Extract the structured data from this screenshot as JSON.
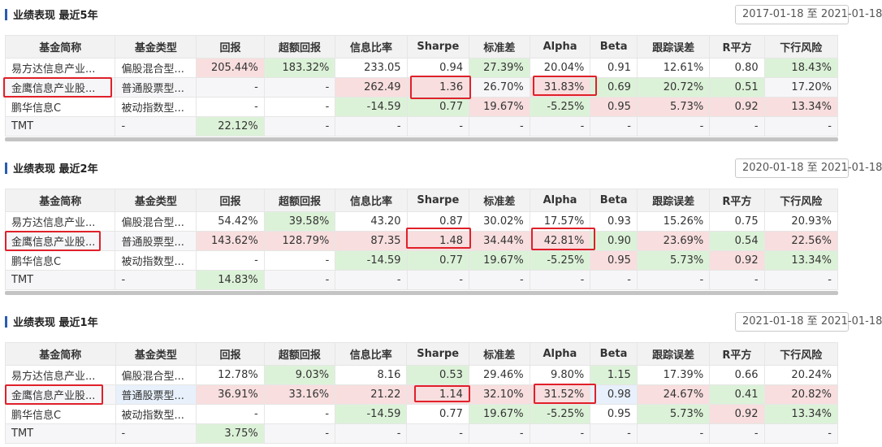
{
  "columns": [
    "基金简称",
    "基金类型",
    "回报",
    "超额回报",
    "信息比率",
    "Sharpe",
    "标准差",
    "Alpha",
    "Beta",
    "跟踪误差",
    "R平方",
    "下行风险"
  ],
  "sections": [
    {
      "title": "业绩表现 最近5年",
      "date": "2017-01-18 至 2021-01-18",
      "rows": [
        {
          "cells": [
            "易方达信息产业...",
            "偏股混合型...",
            "205.44%",
            "183.32%",
            "233.05",
            "0.94",
            "27.39%",
            "20.04%",
            "0.91",
            "12.61%",
            "0.80",
            "18.43%"
          ]
        },
        {
          "cells": [
            "金鹰信息产业股...",
            "普通股票型...",
            "-",
            "-",
            "262.49",
            "1.36",
            "26.70%",
            "31.83%",
            "0.69",
            "20.72%",
            "0.51",
            "17.20%"
          ]
        },
        {
          "cells": [
            "鹏华信息C",
            "被动指数型...",
            "-",
            "-",
            "-14.59",
            "0.77",
            "19.67%",
            "-5.25%",
            "0.95",
            "5.73%",
            "0.92",
            "13.34%"
          ]
        },
        {
          "cells": [
            "TMT",
            "-",
            "22.12%",
            "-",
            "-",
            "-",
            "-",
            "-",
            "-",
            "-",
            "-",
            "-"
          ]
        }
      ]
    },
    {
      "title": "业绩表现 最近2年",
      "date": "2020-01-18 至 2021-01-18",
      "rows": [
        {
          "cells": [
            "易方达信息产业...",
            "偏股混合型...",
            "54.42%",
            "39.58%",
            "43.20",
            "0.87",
            "30.02%",
            "17.57%",
            "0.93",
            "15.26%",
            "0.75",
            "20.93%"
          ]
        },
        {
          "cells": [
            "金鹰信息产业股...",
            "普通股票型...",
            "143.62%",
            "128.79%",
            "87.35",
            "1.48",
            "34.44%",
            "42.81%",
            "0.90",
            "23.69%",
            "0.54",
            "22.56%"
          ]
        },
        {
          "cells": [
            "鹏华信息C",
            "被动指数型...",
            "-",
            "-",
            "-14.59",
            "0.77",
            "19.67%",
            "-5.25%",
            "0.95",
            "5.73%",
            "0.92",
            "13.34%"
          ]
        },
        {
          "cells": [
            "TMT",
            "-",
            "14.83%",
            "-",
            "-",
            "-",
            "-",
            "-",
            "-",
            "-",
            "-",
            "-"
          ]
        }
      ]
    },
    {
      "title": "业绩表现 最近1年",
      "date": "2021-01-18 至 2021-01-18",
      "rows": [
        {
          "cells": [
            "易方达信息产业...",
            "偏股混合型...",
            "12.78%",
            "9.03%",
            "8.16",
            "0.53",
            "29.46%",
            "9.80%",
            "1.15",
            "17.39%",
            "0.66",
            "20.24%"
          ]
        },
        {
          "cells": [
            "金鹰信息产业股...",
            "普通股票型...",
            "36.91%",
            "33.16%",
            "21.22",
            "1.14",
            "32.10%",
            "31.52%",
            "0.98",
            "24.67%",
            "0.41",
            "20.82%"
          ]
        },
        {
          "cells": [
            "鹏华信息C",
            "被动指数型...",
            "-",
            "-",
            "-14.59",
            "0.77",
            "19.67%",
            "-5.25%",
            "0.95",
            "5.73%",
            "0.92",
            "13.34%"
          ]
        },
        {
          "cells": [
            "TMT",
            "-",
            "3.75%",
            "-",
            "-",
            "-",
            "-",
            "-",
            "-",
            "-",
            "-",
            "-"
          ]
        }
      ]
    }
  ],
  "colors": {
    "positive_bg": "#dcf2d8",
    "negative_bg": "#f8dede",
    "neutral_bg": "#e7f0fb",
    "highlight_box": "#e0202a",
    "accent_bar": "#2a5db0"
  }
}
